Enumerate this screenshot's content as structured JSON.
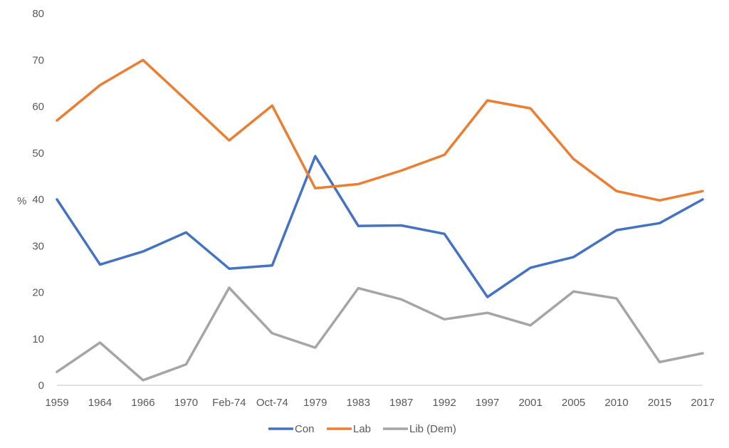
{
  "chart_data": {
    "type": "line",
    "title": "",
    "xlabel": "",
    "ylabel": "%",
    "ylim": [
      0,
      80
    ],
    "yticks": [
      0,
      10,
      20,
      30,
      40,
      50,
      60,
      70,
      80
    ],
    "grid": false,
    "legend_position": "bottom",
    "categories": [
      "1959",
      "1964",
      "1966",
      "1970",
      "Feb-74",
      "Oct-74",
      "1979",
      "1983",
      "1987",
      "1992",
      "1997",
      "2001",
      "2005",
      "2010",
      "2015",
      "2017"
    ],
    "series": [
      {
        "name": "Con",
        "color": "#4472C4",
        "values": [
          40.0,
          26.0,
          28.8,
          32.9,
          25.1,
          25.8,
          49.3,
          34.3,
          34.4,
          32.6,
          19.0,
          25.3,
          27.6,
          33.4,
          34.9,
          40.0
        ]
      },
      {
        "name": "Lab",
        "color": "#ED7D31",
        "values": [
          57.0,
          64.6,
          70.0,
          61.4,
          52.7,
          60.2,
          42.4,
          43.3,
          46.2,
          49.6,
          61.3,
          59.6,
          48.7,
          41.8,
          39.8,
          41.8
        ]
      },
      {
        "name": "Lib (Dem)",
        "color": "#A5A5A5",
        "values": [
          2.9,
          9.2,
          1.1,
          4.5,
          21.0,
          11.2,
          8.1,
          20.9,
          18.5,
          14.2,
          15.6,
          12.9,
          20.2,
          18.7,
          5.0,
          6.9
        ]
      }
    ]
  },
  "colors": {
    "tick_text": "#595959",
    "axis_line": "#D9D9D9",
    "background": "#FFFFFF"
  }
}
